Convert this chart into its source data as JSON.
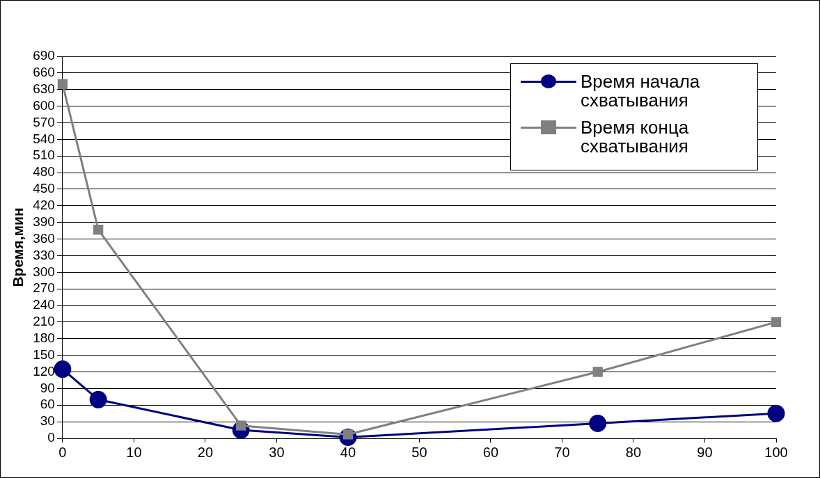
{
  "chart_data": {
    "type": "line",
    "ylabel": "Время,мин",
    "x": [
      0,
      5,
      25,
      40,
      75,
      100
    ],
    "series": [
      {
        "name": "Время начала схватывания",
        "color": "#000080",
        "values": [
          125,
          70,
          15,
          2,
          27,
          45
        ],
        "marker": "circle"
      },
      {
        "name": "Время конца схватывания",
        "color": "#808080",
        "values": [
          640,
          377,
          23,
          7,
          120,
          210
        ],
        "marker": "square"
      }
    ],
    "xlim": [
      0,
      100
    ],
    "xticks": [
      0,
      10,
      20,
      30,
      40,
      50,
      60,
      70,
      80,
      90,
      100
    ],
    "ylim": [
      0,
      690
    ],
    "yticks": [
      0,
      30,
      60,
      90,
      120,
      150,
      180,
      210,
      240,
      270,
      300,
      330,
      360,
      390,
      420,
      450,
      480,
      510,
      540,
      570,
      600,
      630,
      660,
      690
    ],
    "grid": "y",
    "legend": "top right"
  }
}
